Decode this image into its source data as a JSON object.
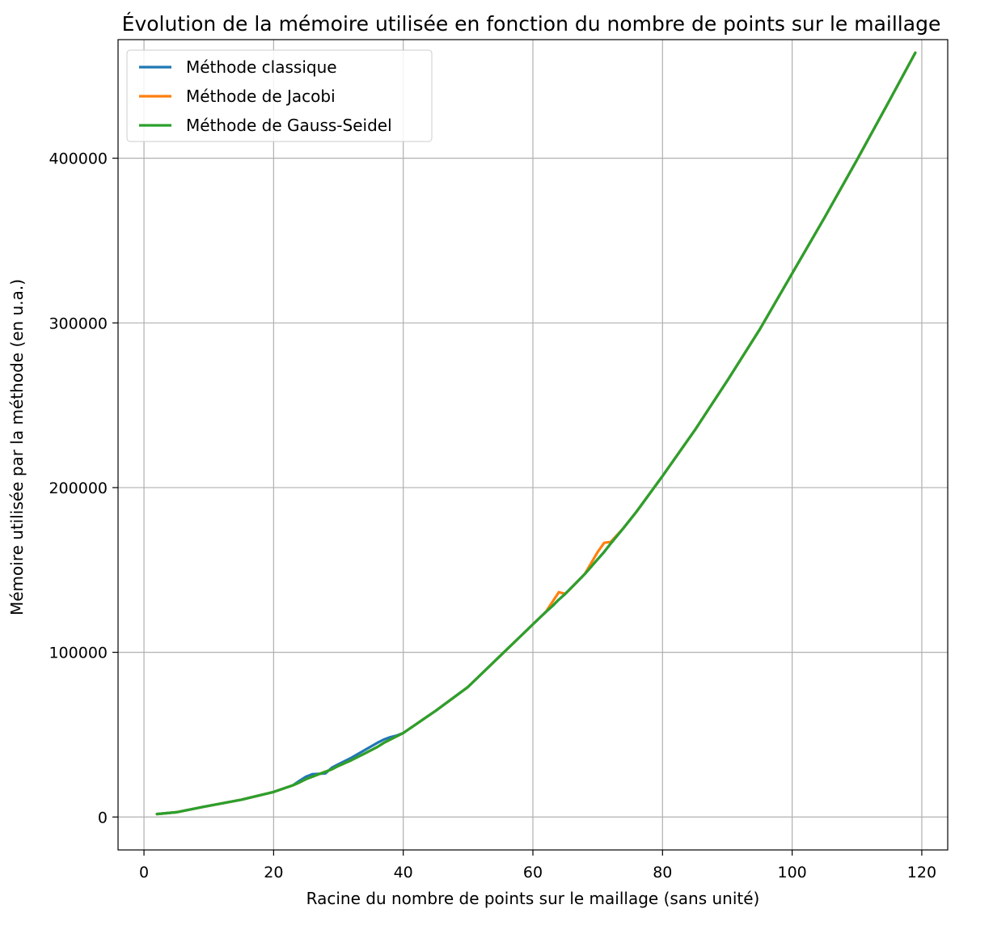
{
  "chart_data": {
    "type": "line",
    "title": "Évolution de la mémoire utilisée en fonction du nombre de points sur le maillage",
    "xlabel": "Racine du nombre de points sur le maillage (sans unité)",
    "ylabel": "Mémoire utilisée par la méthode (en u.a.)",
    "xlim": [
      -4,
      124
    ],
    "ylim": [
      -20000,
      472000
    ],
    "xticks": [
      0,
      20,
      40,
      60,
      80,
      100,
      120
    ],
    "yticks": [
      0,
      100000,
      200000,
      300000,
      400000
    ],
    "xtick_labels": [
      "0",
      "20",
      "40",
      "60",
      "80",
      "100",
      "120"
    ],
    "ytick_labels": [
      "0",
      "100000",
      "200000",
      "300000",
      "400000"
    ],
    "grid": true,
    "legend_position": "upper-left",
    "series": [
      {
        "name": "Méthode classique",
        "color": "#1f77b4",
        "x": [
          2,
          5,
          10,
          15,
          20,
          23,
          24,
          25,
          26,
          27,
          28,
          29,
          30,
          32,
          34,
          36,
          37,
          38,
          39,
          40,
          45,
          50,
          55,
          60,
          62,
          63,
          64,
          65,
          66,
          68,
          70,
          71,
          72,
          74,
          76,
          80,
          85,
          90,
          95,
          100,
          105,
          110,
          115,
          119
        ],
        "y": [
          1800,
          2900,
          6800,
          10500,
          15200,
          19300,
          22000,
          24500,
          26000,
          26200,
          26500,
          30000,
          32000,
          36000,
          40500,
          45000,
          47000,
          48500,
          49500,
          51000,
          64500,
          79000,
          98000,
          117000,
          124500,
          128000,
          132000,
          135500,
          139500,
          147500,
          156500,
          161000,
          166000,
          175500,
          185500,
          207000,
          235000,
          265000,
          296000,
          330000,
          364000,
          399000,
          435000,
          464000
        ]
      },
      {
        "name": "Méthode de Jacobi",
        "color": "#ff7f0e",
        "x": [
          2,
          5,
          10,
          15,
          20,
          23,
          24,
          25,
          26,
          27,
          28,
          29,
          30,
          32,
          34,
          36,
          37,
          38,
          39,
          40,
          45,
          50,
          55,
          60,
          62,
          63,
          64,
          65,
          66,
          68,
          70,
          71,
          72,
          74,
          76,
          80,
          85,
          90,
          95,
          100,
          105,
          110,
          115,
          119
        ],
        "y": [
          1800,
          2900,
          6800,
          10500,
          15200,
          19300,
          21000,
          23000,
          24500,
          26000,
          27500,
          29000,
          31000,
          34500,
          38500,
          42500,
          45000,
          47000,
          49000,
          51000,
          64500,
          79000,
          98000,
          117000,
          124500,
          130500,
          136500,
          135500,
          139500,
          147500,
          161000,
          166500,
          167000,
          175500,
          185500,
          207000,
          235000,
          265000,
          296000,
          330000,
          364000,
          399000,
          435000,
          464000
        ]
      },
      {
        "name": "Méthode de Gauss-Seidel",
        "color": "#2ca02c",
        "x": [
          2,
          5,
          10,
          15,
          20,
          23,
          24,
          25,
          26,
          27,
          28,
          29,
          30,
          32,
          34,
          36,
          37,
          38,
          39,
          40,
          45,
          50,
          55,
          60,
          62,
          63,
          64,
          65,
          66,
          68,
          70,
          71,
          72,
          74,
          76,
          80,
          85,
          90,
          95,
          100,
          105,
          110,
          115,
          119
        ],
        "y": [
          1800,
          2900,
          6800,
          10500,
          15200,
          19300,
          21000,
          23000,
          24500,
          26000,
          27500,
          29000,
          31000,
          34500,
          38500,
          42500,
          45000,
          47000,
          49000,
          51000,
          64500,
          79000,
          98000,
          117000,
          124500,
          128000,
          132000,
          135500,
          139500,
          147500,
          156500,
          161000,
          166000,
          175500,
          185500,
          207000,
          235000,
          265000,
          296000,
          330000,
          364000,
          399000,
          435000,
          464000
        ]
      }
    ]
  }
}
